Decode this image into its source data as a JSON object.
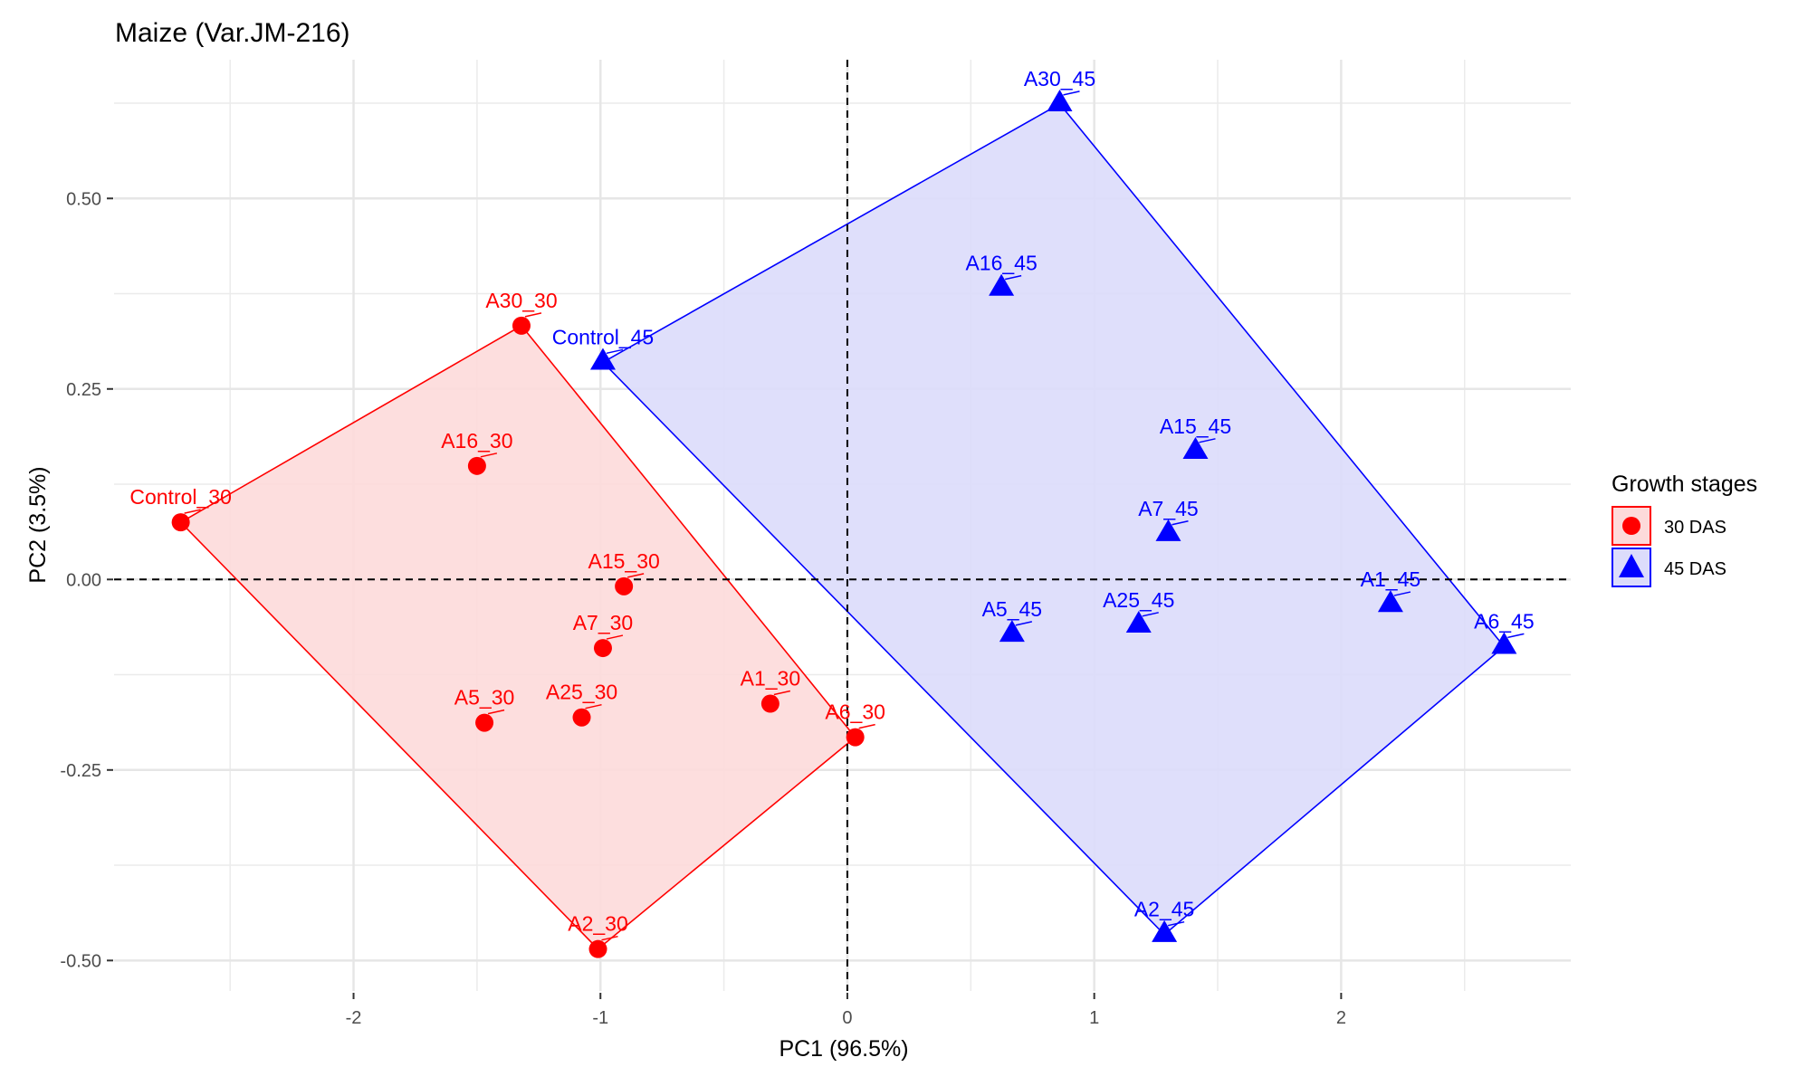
{
  "chart_data": {
    "type": "scatter",
    "title": "Maize (Var.JM-216)",
    "xlabel": "PC1 (96.5%)",
    "ylabel": "PC2 (3.5%)",
    "xlim": [
      -2.97,
      2.93
    ],
    "ylim": [
      -0.54,
      0.682
    ],
    "x_ticks": [
      -2,
      -1,
      0,
      1,
      2
    ],
    "x_tick_labels": [
      "-2",
      "-1",
      "0",
      "1",
      "2"
    ],
    "x_minor": [
      -2.5,
      -1.5,
      -0.5,
      0.5,
      1.5,
      2.5
    ],
    "y_ticks": [
      -0.5,
      -0.25,
      0,
      0.25,
      0.5
    ],
    "y_tick_labels": [
      "-0.50",
      "-0.25",
      "0.00",
      "0.25",
      "0.50"
    ],
    "y_minor": [
      -0.375,
      -0.125,
      0.125,
      0.375,
      0.625
    ],
    "grid": true,
    "reference_lines": {
      "x": 0,
      "y": 0,
      "style": "dashed"
    },
    "legend": {
      "title": "Growth stages",
      "position": "right",
      "entries": [
        {
          "label": "30 DAS",
          "shape": "circle",
          "color": "#ff0000",
          "fill": "#fddada"
        },
        {
          "label": "45 DAS",
          "shape": "triangle",
          "color": "#0000ff",
          "fill": "#dcdcfb"
        }
      ]
    },
    "series": [
      {
        "name": "30 DAS",
        "shape": "circle",
        "color": "#ff0000",
        "fill": "#fddada",
        "hull": [
          "Control_30",
          "A30_30",
          "A6_30",
          "A2_30"
        ],
        "points": [
          {
            "label": "Control_30",
            "x": -2.7,
            "y": 0.075
          },
          {
            "label": "A30_30",
            "x": -1.32,
            "y": 0.333
          },
          {
            "label": "A16_30",
            "x": -1.5,
            "y": 0.149
          },
          {
            "label": "A15_30",
            "x": -0.905,
            "y": -0.009
          },
          {
            "label": "A7_30",
            "x": -0.99,
            "y": -0.09
          },
          {
            "label": "A5_30",
            "x": -1.47,
            "y": -0.188
          },
          {
            "label": "A25_30",
            "x": -1.076,
            "y": -0.181
          },
          {
            "label": "A1_30",
            "x": -0.312,
            "y": -0.163
          },
          {
            "label": "A6_30",
            "x": 0.032,
            "y": -0.207
          },
          {
            "label": "A2_30",
            "x": -1.01,
            "y": -0.485
          }
        ]
      },
      {
        "name": "45 DAS",
        "shape": "triangle",
        "color": "#0000ff",
        "fill": "#dcdcfb",
        "hull": [
          "Control_45",
          "A30_45",
          "A6_45",
          "A2_45"
        ],
        "points": [
          {
            "label": "A30_45",
            "x": 0.86,
            "y": 0.624
          },
          {
            "label": "A16_45",
            "x": 0.624,
            "y": 0.382
          },
          {
            "label": "Control_45",
            "x": -0.99,
            "y": 0.285
          },
          {
            "label": "A15_45",
            "x": 1.41,
            "y": 0.168
          },
          {
            "label": "A7_45",
            "x": 1.3,
            "y": 0.06
          },
          {
            "label": "A5_45",
            "x": 0.667,
            "y": -0.072
          },
          {
            "label": "A25_45",
            "x": 1.18,
            "y": -0.06
          },
          {
            "label": "A1_45",
            "x": 2.2,
            "y": -0.033
          },
          {
            "label": "A6_45",
            "x": 2.66,
            "y": -0.088
          },
          {
            "label": "A2_45",
            "x": 1.284,
            "y": -0.466
          }
        ]
      }
    ]
  }
}
